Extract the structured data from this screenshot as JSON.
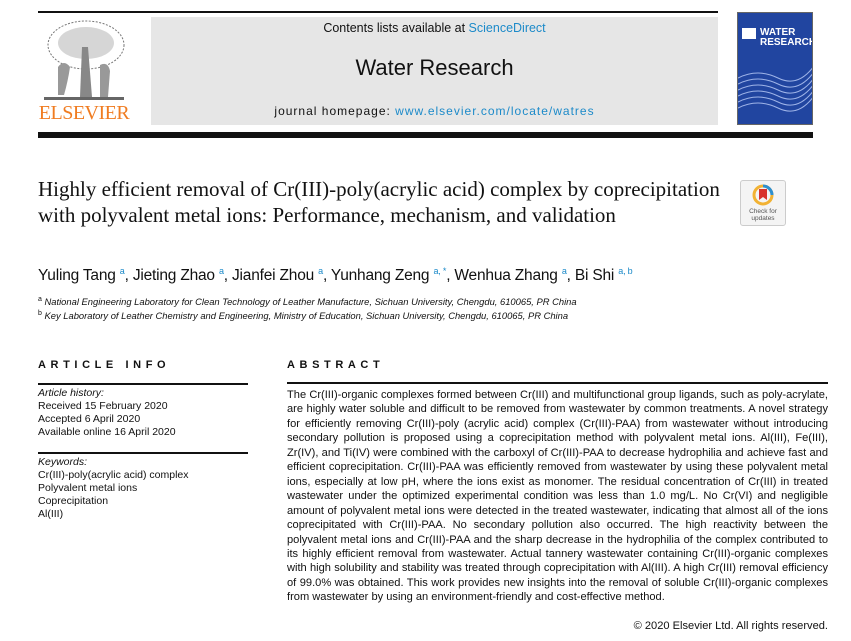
{
  "header": {
    "publisher": "ELSEVIER",
    "contents_prefix": "Contents lists available at ",
    "contents_link": "ScienceDirect",
    "journal_title": "Water Research",
    "homepage_prefix": "journal homepage: ",
    "homepage_link": "www.elsevier.com/locate/watres",
    "cover_title_1": "WATER",
    "cover_title_2": "RESEARCH",
    "link_color": "#1c8ac9",
    "publisher_color": "#f07c21"
  },
  "article": {
    "title": "Highly efficient removal of Cr(III)-poly(acrylic acid) complex by coprecipitation with polyvalent metal ions: Performance, mechanism, and validation",
    "check_updates": "Check for updates",
    "authors": [
      {
        "name": "Yuling Tang",
        "sup": "a"
      },
      {
        "name": "Jieting Zhao",
        "sup": "a"
      },
      {
        "name": "Jianfei Zhou",
        "sup": "a"
      },
      {
        "name": "Yunhang Zeng",
        "sup": "a, *"
      },
      {
        "name": "Wenhua Zhang",
        "sup": "a"
      },
      {
        "name": "Bi Shi",
        "sup": "a, b"
      }
    ],
    "affiliations": [
      {
        "mark": "a",
        "text": "National Engineering Laboratory for Clean Technology of Leather Manufacture, Sichuan University, Chengdu, 610065, PR China"
      },
      {
        "mark": "b",
        "text": "Key Laboratory of Leather Chemistry and Engineering, Ministry of Education, Sichuan University, Chengdu, 610065, PR China"
      }
    ]
  },
  "article_info": {
    "heading": "ARTICLE INFO",
    "history_label": "Article history:",
    "history": [
      "Received 15 February 2020",
      "Accepted 6 April 2020",
      "Available online 16 April 2020"
    ],
    "keywords_label": "Keywords:",
    "keywords": [
      "Cr(III)-poly(acrylic acid) complex",
      "Polyvalent metal ions",
      "Coprecipitation",
      "Al(III)"
    ]
  },
  "abstract": {
    "heading": "ABSTRACT",
    "text": "The Cr(III)-organic complexes formed between Cr(III) and multifunctional group ligands, such as poly-acrylate, are highly water soluble and difficult to be removed from wastewater by common treatments. A novel strategy for efficiently removing Cr(III)-poly (acrylic acid) complex (Cr(III)-PAA) from wastewater without introducing secondary pollution is proposed using a coprecipitation method with polyvalent metal ions. Al(III), Fe(III), Zr(IV), and Ti(IV) were combined with the carboxyl of Cr(III)-PAA to decrease hydrophilia and achieve fast and efficient coprecipitation. Cr(III)-PAA was efficiently removed from wastewater by using these polyvalent metal ions, especially at low pH, where the ions exist as monomer. The residual concentration of Cr(III) in treated wastewater under the optimized experimental condition was less than 1.0 mg/L. No Cr(VI) and negligible amount of polyvalent metal ions were detected in the treated wastewater, indicating that almost all of the ions coprecipitated with Cr(III)-PAA. No secondary pollution also occurred. The high reactivity between the polyvalent metal ions and Cr(III)-PAA and the sharp decrease in the hydrophilia of the complex contributed to its highly efficient removal from wastewater. Actual tannery wastewater containing Cr(III)-organic complexes with high solubility and stability was treated through coprecipitation with Al(III). A high Cr(III) removal efficiency of 99.0% was obtained. This work provides new insights into the removal of soluble Cr(III)-organic complexes from wastewater by using an environment-friendly and cost-effective method.",
    "copyright": "© 2020 Elsevier Ltd. All rights reserved."
  }
}
